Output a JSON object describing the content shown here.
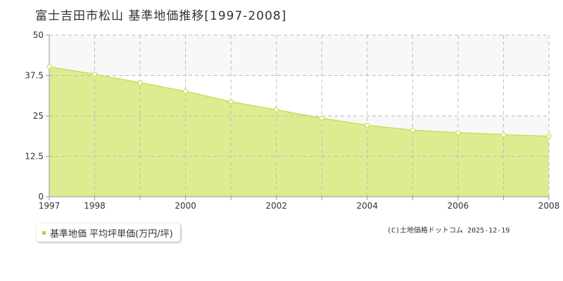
{
  "title": "富士吉田市松山  基準地価推移[1997-2008]",
  "legend": {
    "label": "基準地価 平均坪単価(万円/坪)",
    "marker_color": "#b5d334"
  },
  "copyright": "(C)土地価格ドットコム 2025-12-19",
  "colors": {
    "fill": "#dced91",
    "line": "#c8e05a",
    "point_fill": "#ffffff",
    "point_stroke": "#c8e05a",
    "grid": "#bbbbbb",
    "band": "#f8f8f8"
  },
  "chart_data": {
    "type": "area",
    "x": [
      1997,
      1998,
      1999,
      2000,
      2001,
      2002,
      2003,
      2004,
      2005,
      2006,
      2007,
      2008
    ],
    "series": [
      {
        "name": "基準地価 平均坪単価(万円/坪)",
        "values": [
          40.2,
          37.9,
          35.3,
          32.6,
          29.4,
          26.9,
          24.3,
          22.1,
          20.6,
          19.8,
          19.2,
          18.7
        ]
      }
    ],
    "xlim": [
      1997,
      2008
    ],
    "ylim": [
      0,
      50
    ],
    "yticks": [
      "0",
      "12.5",
      "25",
      "37.5",
      "50"
    ],
    "xtick_labels": [
      "1997",
      "1998",
      "2000",
      "2002",
      "2004",
      "2006",
      "2008"
    ],
    "grid": true,
    "legend_position": "bottom-left"
  }
}
